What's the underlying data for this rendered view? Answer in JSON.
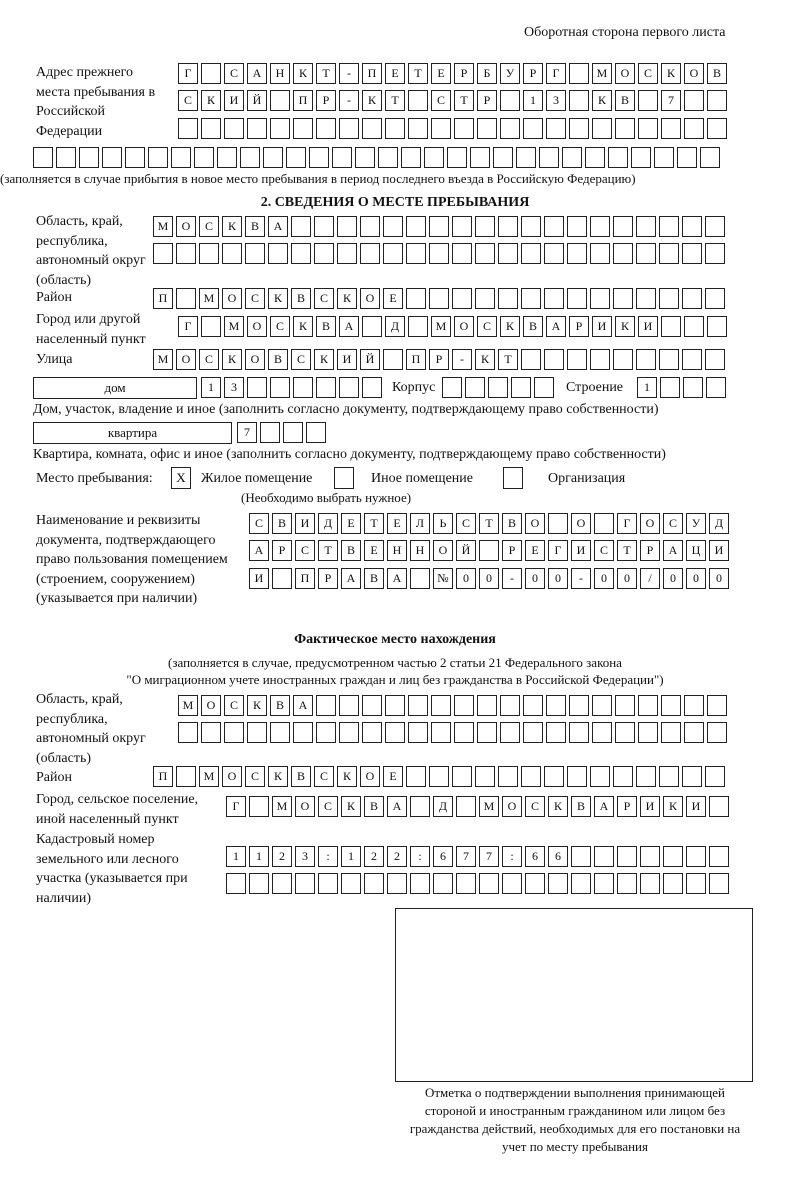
{
  "header": "Оборотная сторона первого листа",
  "prev_address": {
    "label": "Адрес прежнего места пребывания в Российской Федерации",
    "rows": [
      [
        "Г",
        "",
        "С",
        "А",
        "Н",
        "К",
        "Т",
        "-",
        "П",
        "Е",
        "Т",
        "Е",
        "Р",
        "Б",
        "У",
        "Р",
        "Г",
        "",
        "М",
        "О",
        "С",
        "К",
        "О",
        "В"
      ],
      [
        "С",
        "К",
        "И",
        "Й",
        "",
        "П",
        "Р",
        "-",
        "К",
        "Т",
        "",
        "С",
        "Т",
        "Р",
        "",
        "1",
        "3",
        "",
        "К",
        "В",
        "",
        "7",
        "",
        ""
      ],
      [
        "",
        "",
        "",
        "",
        "",
        "",
        "",
        "",
        "",
        "",
        "",
        "",
        "",
        "",
        "",
        "",
        "",
        "",
        "",
        "",
        "",
        "",
        "",
        ""
      ],
      [
        "",
        "",
        "",
        "",
        "",
        "",
        "",
        "",
        "",
        "",
        "",
        "",
        "",
        "",
        "",
        "",
        "",
        "",
        "",
        "",
        "",
        "",
        "",
        "",
        "",
        "",
        "",
        "",
        "",
        ""
      ]
    ],
    "note": "(заполняется в случае прибытия в новое место пребывания в период последнего въезда в Российскую Федерацию)"
  },
  "section2": {
    "title": "2. СВЕДЕНИЯ О МЕСТЕ ПРЕБЫВАНИЯ",
    "region_label": "Область, край, республика, автономный округ (область)",
    "region_rows": [
      [
        "М",
        "О",
        "С",
        "К",
        "В",
        "А",
        "",
        "",
        "",
        "",
        "",
        "",
        "",
        "",
        "",
        "",
        "",
        "",
        "",
        "",
        "",
        "",
        "",
        "",
        ""
      ],
      [
        "",
        "",
        "",
        "",
        "",
        "",
        "",
        "",
        "",
        "",
        "",
        "",
        "",
        "",
        "",
        "",
        "",
        "",
        "",
        "",
        "",
        "",
        "",
        "",
        ""
      ]
    ],
    "district_label": "Район",
    "district": [
      "П",
      "",
      "М",
      "О",
      "С",
      "К",
      "В",
      "С",
      "К",
      "О",
      "Е",
      "",
      "",
      "",
      "",
      "",
      "",
      "",
      "",
      "",
      "",
      "",
      "",
      "",
      ""
    ],
    "city_label": "Город или другой населенный пункт",
    "city": [
      "Г",
      "",
      "М",
      "О",
      "С",
      "К",
      "В",
      "А",
      "",
      "Д",
      "",
      "М",
      "О",
      "С",
      "К",
      "В",
      "А",
      "Р",
      "И",
      "К",
      "И",
      "",
      "",
      ""
    ],
    "street_label": "Улица",
    "street": [
      "М",
      "О",
      "С",
      "К",
      "О",
      "В",
      "С",
      "К",
      "И",
      "Й",
      "",
      "П",
      "Р",
      "-",
      "К",
      "Т",
      "",
      "",
      "",
      "",
      "",
      "",
      "",
      "",
      ""
    ],
    "house_type": "дом",
    "house": [
      "1",
      "3",
      "",
      "",
      "",
      "",
      "",
      ""
    ],
    "korpus_label": "Корпус",
    "korpus": [
      "",
      "",
      "",
      "",
      ""
    ],
    "building_label": "Строение",
    "building": [
      "1",
      "",
      "",
      ""
    ],
    "house_note": "Дом, участок, владение и иное (заполнить согласно документу, подтверждающему право собственности)",
    "flat_type": "квартира",
    "flat": [
      "7",
      "",
      "",
      ""
    ],
    "flat_note": "Квартира, комната, офис и иное (заполнить согласно документу, подтверждающему право собственности)",
    "place_label": "Место пребывания:",
    "options": [
      {
        "label": "Жилое помещение",
        "mark": "Х"
      },
      {
        "label": "Иное помещение",
        "mark": ""
      },
      {
        "label": "Организация",
        "mark": ""
      }
    ],
    "options_note": "(Необходимо выбрать нужное)",
    "doc_label": "Наименование и реквизиты документа, подтверждающего право пользования помещением (строением, сооружением) (указывается при наличии)",
    "doc_rows": [
      [
        "С",
        "В",
        "И",
        "Д",
        "Е",
        "Т",
        "Е",
        "Л",
        "Ь",
        "С",
        "Т",
        "В",
        "О",
        "",
        "О",
        "",
        "Г",
        "О",
        "С",
        "У",
        "Д"
      ],
      [
        "А",
        "Р",
        "С",
        "Т",
        "В",
        "Е",
        "Н",
        "Н",
        "О",
        "Й",
        "",
        "Р",
        "Е",
        "Г",
        "И",
        "С",
        "Т",
        "Р",
        "А",
        "Ц",
        "И"
      ],
      [
        "И",
        "",
        "П",
        "Р",
        "А",
        "В",
        "А",
        "",
        "№",
        "0",
        "0",
        "-",
        "0",
        "0",
        "-",
        "0",
        "0",
        "/",
        "0",
        "0",
        "0"
      ]
    ]
  },
  "actual": {
    "title": "Фактическое место нахождения",
    "subtitle1": "(заполняется в случае, предусмотренном частью 2 статьи 21 Федерального закона",
    "subtitle2": "\"О миграционном учете иностранных граждан и лиц без гражданства в Российской Федерации\")",
    "region_label": "Область, край, республика, автономный округ (область)",
    "region_rows": [
      [
        "М",
        "О",
        "С",
        "К",
        "В",
        "А",
        "",
        "",
        "",
        "",
        "",
        "",
        "",
        "",
        "",
        "",
        "",
        "",
        "",
        "",
        "",
        "",
        "",
        ""
      ],
      [
        "",
        "",
        "",
        "",
        "",
        "",
        "",
        "",
        "",
        "",
        "",
        "",
        "",
        "",
        "",
        "",
        "",
        "",
        "",
        "",
        "",
        "",
        "",
        ""
      ]
    ],
    "district_label": "Район",
    "district": [
      "П",
      "",
      "М",
      "О",
      "С",
      "К",
      "В",
      "С",
      "К",
      "О",
      "Е",
      "",
      "",
      "",
      "",
      "",
      "",
      "",
      "",
      "",
      "",
      "",
      "",
      "",
      ""
    ],
    "city_label": "Город, сельское поселение, иной населенный пункт",
    "city": [
      "Г",
      "",
      "М",
      "О",
      "С",
      "К",
      "В",
      "А",
      "",
      "Д",
      "",
      "М",
      "О",
      "С",
      "К",
      "В",
      "А",
      "Р",
      "И",
      "К",
      "И",
      ""
    ],
    "cadastre_label": "Кадастровый номер земельного или лесного участка (указывается при наличии)",
    "cadastre_rows": [
      [
        "1",
        "1",
        "2",
        "3",
        ":",
        "1",
        "2",
        "2",
        ":",
        "6",
        "7",
        "7",
        ":",
        "6",
        "6",
        "",
        "",
        "",
        "",
        "",
        "",
        ""
      ],
      [
        "",
        "",
        "",
        "",
        "",
        "",
        "",
        "",
        "",
        "",
        "",
        "",
        "",
        "",
        "",
        "",
        "",
        "",
        "",
        "",
        "",
        ""
      ]
    ]
  },
  "stamp_caption": "Отметка о подтверждении выполнения принимающей стороной и иностранным гражданином или лицом без гражданства действий, необходимых для его постановки на учет по месту пребывания"
}
